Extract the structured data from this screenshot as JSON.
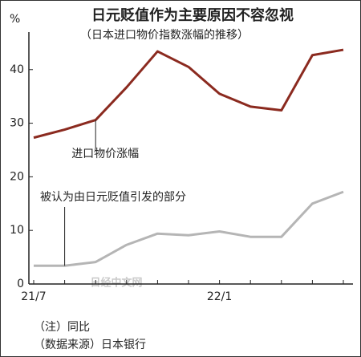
{
  "chart_data": {
    "type": "line",
    "title": "日元贬值作为主要原因不容忽视",
    "subtitle": "（日本进口物价指数涨幅的推移）",
    "y_label": "%",
    "categories": [
      "21/7",
      null,
      null,
      null,
      null,
      null,
      "22/1",
      null,
      null,
      null,
      null
    ],
    "series": [
      {
        "name": "进口物价涨幅",
        "color": "#8b2a1f",
        "values": [
          27.3,
          28.8,
          30.6,
          36.7,
          43.4,
          40.5,
          35.5,
          33.1,
          32.4,
          42.7,
          43.7
        ]
      },
      {
        "name": "被认为由日元贬值引发的部分",
        "color": "#b5b5b5",
        "values": [
          3.4,
          3.4,
          4.1,
          7.3,
          9.4,
          9.1,
          9.8,
          8.8,
          8.8,
          15.0,
          17.2
        ]
      }
    ],
    "ylim": [
      0,
      47
    ],
    "yticks": [
      0,
      10,
      20,
      30,
      40
    ],
    "watermark": "日经中文网",
    "notes": [
      "（注）同比",
      "（数据来源）日本银行"
    ]
  }
}
